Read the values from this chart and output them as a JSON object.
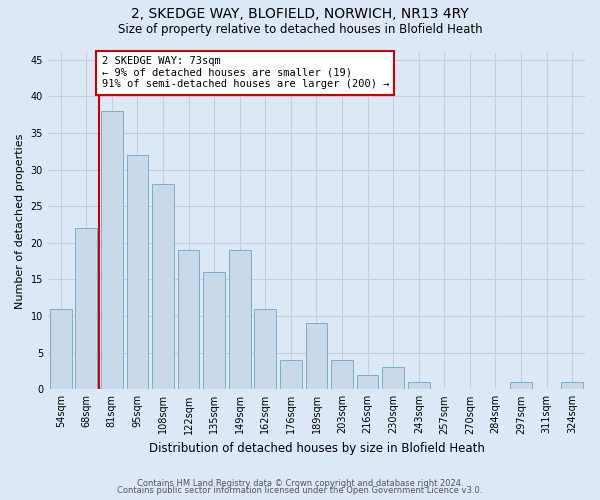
{
  "title": "2, SKEDGE WAY, BLOFIELD, NORWICH, NR13 4RY",
  "subtitle": "Size of property relative to detached houses in Blofield Heath",
  "xlabel": "Distribution of detached houses by size in Blofield Heath",
  "ylabel": "Number of detached properties",
  "categories": [
    "54sqm",
    "68sqm",
    "81sqm",
    "95sqm",
    "108sqm",
    "122sqm",
    "135sqm",
    "149sqm",
    "162sqm",
    "176sqm",
    "189sqm",
    "203sqm",
    "216sqm",
    "230sqm",
    "243sqm",
    "257sqm",
    "270sqm",
    "284sqm",
    "297sqm",
    "311sqm",
    "324sqm"
  ],
  "values": [
    11,
    22,
    38,
    32,
    28,
    19,
    16,
    19,
    11,
    4,
    9,
    4,
    2,
    3,
    1,
    0,
    0,
    0,
    1,
    0,
    1
  ],
  "bar_color": "#c9d9ea",
  "bar_edge_color": "#7aaec8",
  "grid_color": "#c0cfe0",
  "background_color": "#dce8f5",
  "annotation_text": "2 SKEDGE WAY: 73sqm\n← 9% of detached houses are smaller (19)\n91% of semi-detached houses are larger (200) →",
  "annotation_box_color": "#ffffff",
  "annotation_box_edge_color": "#cc0000",
  "vline_color": "#cc0000",
  "vline_x": 1.5,
  "ylim": [
    0,
    46
  ],
  "yticks": [
    0,
    5,
    10,
    15,
    20,
    25,
    30,
    35,
    40,
    45
  ],
  "footer1": "Contains HM Land Registry data © Crown copyright and database right 2024.",
  "footer2": "Contains public sector information licensed under the Open Government Licence v3.0.",
  "title_fontsize": 10,
  "subtitle_fontsize": 8.5,
  "ylabel_fontsize": 8,
  "xlabel_fontsize": 8.5,
  "tick_fontsize": 7,
  "annotation_fontsize": 7.5,
  "footer_fontsize": 6
}
